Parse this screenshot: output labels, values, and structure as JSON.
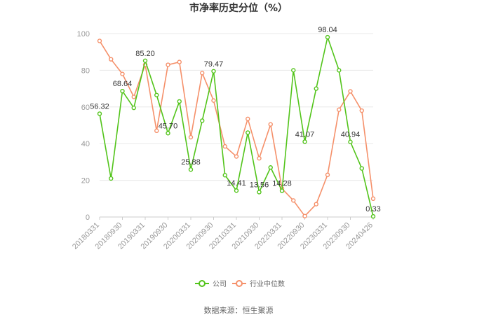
{
  "chart_data": {
    "type": "line",
    "title": "市净率历史分位（%）",
    "ylim": [
      0,
      100
    ],
    "yticks": [
      0,
      20,
      40,
      60,
      80,
      100
    ],
    "grid": true,
    "legend_position": "bottom",
    "x_labels": [
      "20180331",
      "20180930",
      "20190331",
      "20190930",
      "20200331",
      "20200930",
      "20210331",
      "20210930",
      "20220331",
      "20220930",
      "20230331",
      "20230930",
      "20240426"
    ],
    "colors": {
      "company": "#52c41a",
      "industry": "#f5906a",
      "grid": "#e8e8e8"
    },
    "series": [
      {
        "name": "公司",
        "values": [
          56.32,
          21.0,
          68.64,
          59.5,
          85.2,
          66.5,
          45.7,
          63.0,
          25.88,
          52.5,
          79.47,
          22.8,
          14.41,
          46.0,
          13.56,
          27.0,
          14.28,
          80.0,
          41.07,
          70.0,
          98.04,
          80.0,
          40.94,
          26.5,
          0.33
        ],
        "data_labels": [
          {
            "index": 0,
            "text": "56.32"
          },
          {
            "index": 2,
            "text": "68.64"
          },
          {
            "index": 4,
            "text": "85.20"
          },
          {
            "index": 6,
            "text": "45.70"
          },
          {
            "index": 8,
            "text": "25.88"
          },
          {
            "index": 10,
            "text": "79.47"
          },
          {
            "index": 12,
            "text": "14.41"
          },
          {
            "index": 14,
            "text": "13.56"
          },
          {
            "index": 16,
            "text": "14.28"
          },
          {
            "index": 18,
            "text": "41.07"
          },
          {
            "index": 20,
            "text": "98.04"
          },
          {
            "index": 22,
            "text": "40.94"
          },
          {
            "index": 24,
            "text": "0.33"
          }
        ]
      },
      {
        "name": "行业中位数",
        "values": [
          96.0,
          86.0,
          78.0,
          65.5,
          83.0,
          47.0,
          83.0,
          84.5,
          43.5,
          78.5,
          63.5,
          38.5,
          33.0,
          53.5,
          32.0,
          50.5,
          15.5,
          9.0,
          0.5,
          7.0,
          23.0,
          58.5,
          68.5,
          58.0,
          10.0
        ]
      }
    ]
  },
  "source_text": "数据来源：恒生聚源"
}
